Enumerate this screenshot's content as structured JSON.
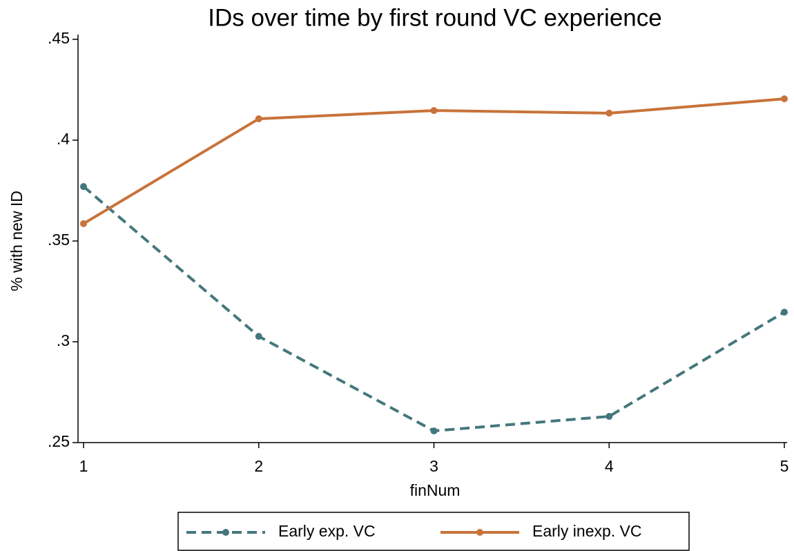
{
  "chart_data": {
    "type": "line",
    "title": "IDs over time by first round VC experience",
    "xlabel": "finNum",
    "ylabel": "% with new ID",
    "x": [
      1,
      2,
      3,
      4,
      5
    ],
    "series": [
      {
        "name": "Early exp. VC",
        "color": "#44777b",
        "dash": true,
        "values": [
          0.377,
          0.3027,
          0.2558,
          0.263,
          0.3147
        ]
      },
      {
        "name": "Early inexp. VC",
        "color": "#c8733a",
        "dash": false,
        "values": [
          0.3586,
          0.4106,
          0.4147,
          0.4134,
          0.4205
        ]
      }
    ],
    "xlim": [
      1,
      5
    ],
    "xticks": [
      1,
      2,
      3,
      4,
      5
    ],
    "ylim": [
      0.25,
      0.45
    ],
    "yticks": [
      {
        "value": 0.25,
        "label": ".25"
      },
      {
        "value": 0.3,
        "label": ".3"
      },
      {
        "value": 0.35,
        "label": ".35"
      },
      {
        "value": 0.4,
        "label": ".4"
      },
      {
        "value": 0.45,
        "label": ".45"
      }
    ],
    "grid": false
  }
}
